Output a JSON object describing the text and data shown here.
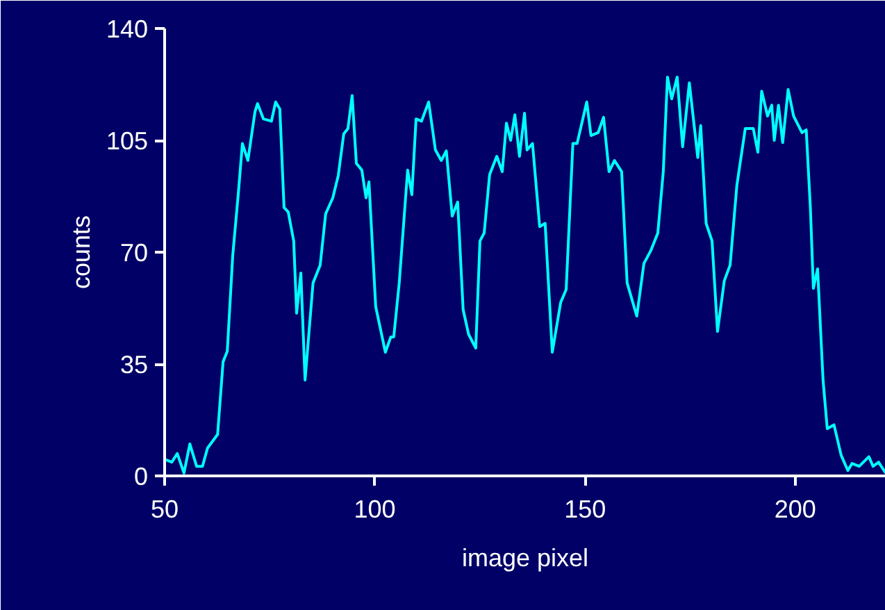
{
  "chart_data": {
    "type": "line",
    "xlabel": "image pixel",
    "ylabel": "counts",
    "xlim": [
      50,
      221.5
    ],
    "ylim": [
      0,
      140
    ],
    "xticks": [
      50,
      100,
      150,
      200
    ],
    "yticks": [
      0,
      35,
      70,
      105,
      140
    ],
    "grid": false,
    "line_style": "solid",
    "series": [
      {
        "color": "#00ffff",
        "x": [
          50,
          51.7,
          53,
          54.6,
          56,
          57.6,
          59,
          60.2,
          62.6,
          63.9,
          64.9,
          66.2,
          67.5,
          68.5,
          69.8,
          71.5,
          72.1,
          73.5,
          75.4,
          76.4,
          77.4,
          78.4,
          79.4,
          80.7,
          81.4,
          82.4,
          83.4,
          85.3,
          87,
          88.3,
          90,
          91.3,
          92.6,
          93.6,
          94.6,
          95.6,
          96.9,
          97.9,
          98.6,
          100.2,
          102.5,
          103.8,
          104.5,
          105.8,
          107.8,
          108.8,
          109.8,
          111.1,
          112.8,
          114.4,
          115.8,
          117,
          118.4,
          119.7,
          121,
          122.3,
          124,
          125,
          126,
          127.3,
          129,
          130.3,
          131.3,
          132.3,
          133.3,
          134.4,
          135.6,
          136.2,
          137.5,
          139.2,
          140.5,
          142.2,
          144.2,
          145.5,
          147.1,
          148.1,
          150.4,
          151.4,
          153.1,
          154.4,
          155.7,
          157,
          158.7,
          160,
          162.3,
          164,
          165.6,
          167.3,
          168.6,
          169.6,
          170.6,
          171.9,
          173.2,
          174.8,
          176.8,
          177.5,
          178.8,
          180.2,
          181.5,
          183.1,
          184.5,
          186.1,
          188.1,
          190,
          191.1,
          192,
          193.4,
          194.4,
          195,
          196,
          197,
          198.3,
          199.6,
          201.6,
          202.6,
          203.6,
          204.3,
          205.3,
          206.6,
          207.6,
          209.2,
          210.9,
          212.5,
          213.5,
          215.2,
          217.5,
          218.5,
          219.8,
          221.5
        ],
        "values": [
          5.2,
          4.3,
          7,
          0.9,
          10,
          3,
          3,
          8.7,
          13,
          35.7,
          39,
          69,
          88,
          104,
          98.7,
          114,
          116.5,
          111.7,
          111,
          117,
          114.8,
          84,
          82.6,
          73.5,
          50.9,
          63.5,
          30,
          60.4,
          66,
          82,
          87,
          94,
          107,
          108.7,
          119,
          97.8,
          95.7,
          87,
          92,
          53,
          38.7,
          43.5,
          43.5,
          60.4,
          95.7,
          88,
          111.7,
          111,
          117,
          102,
          98.7,
          101.7,
          81.3,
          85.7,
          52,
          44.3,
          40,
          73.5,
          76,
          94.3,
          100,
          95.2,
          110.4,
          105,
          113,
          100,
          113.5,
          102,
          104,
          78,
          79,
          38.7,
          54.3,
          58.3,
          104,
          104,
          117,
          106.5,
          107.4,
          112.2,
          95.2,
          98.7,
          95.2,
          60.4,
          50,
          66.5,
          70.4,
          76,
          95.2,
          124.8,
          118,
          124.8,
          103,
          123,
          99.6,
          109.6,
          79,
          73.5,
          45.2,
          61,
          66,
          90.9,
          108.7,
          108.7,
          101.3,
          120.4,
          112.6,
          116,
          105,
          116,
          104.3,
          120.9,
          112.6,
          107.4,
          108.3,
          83.5,
          58.7,
          64.8,
          30,
          14.8,
          16,
          6.5,
          1.7,
          3.9,
          3,
          6,
          3,
          4.3,
          0.9
        ]
      }
    ]
  }
}
